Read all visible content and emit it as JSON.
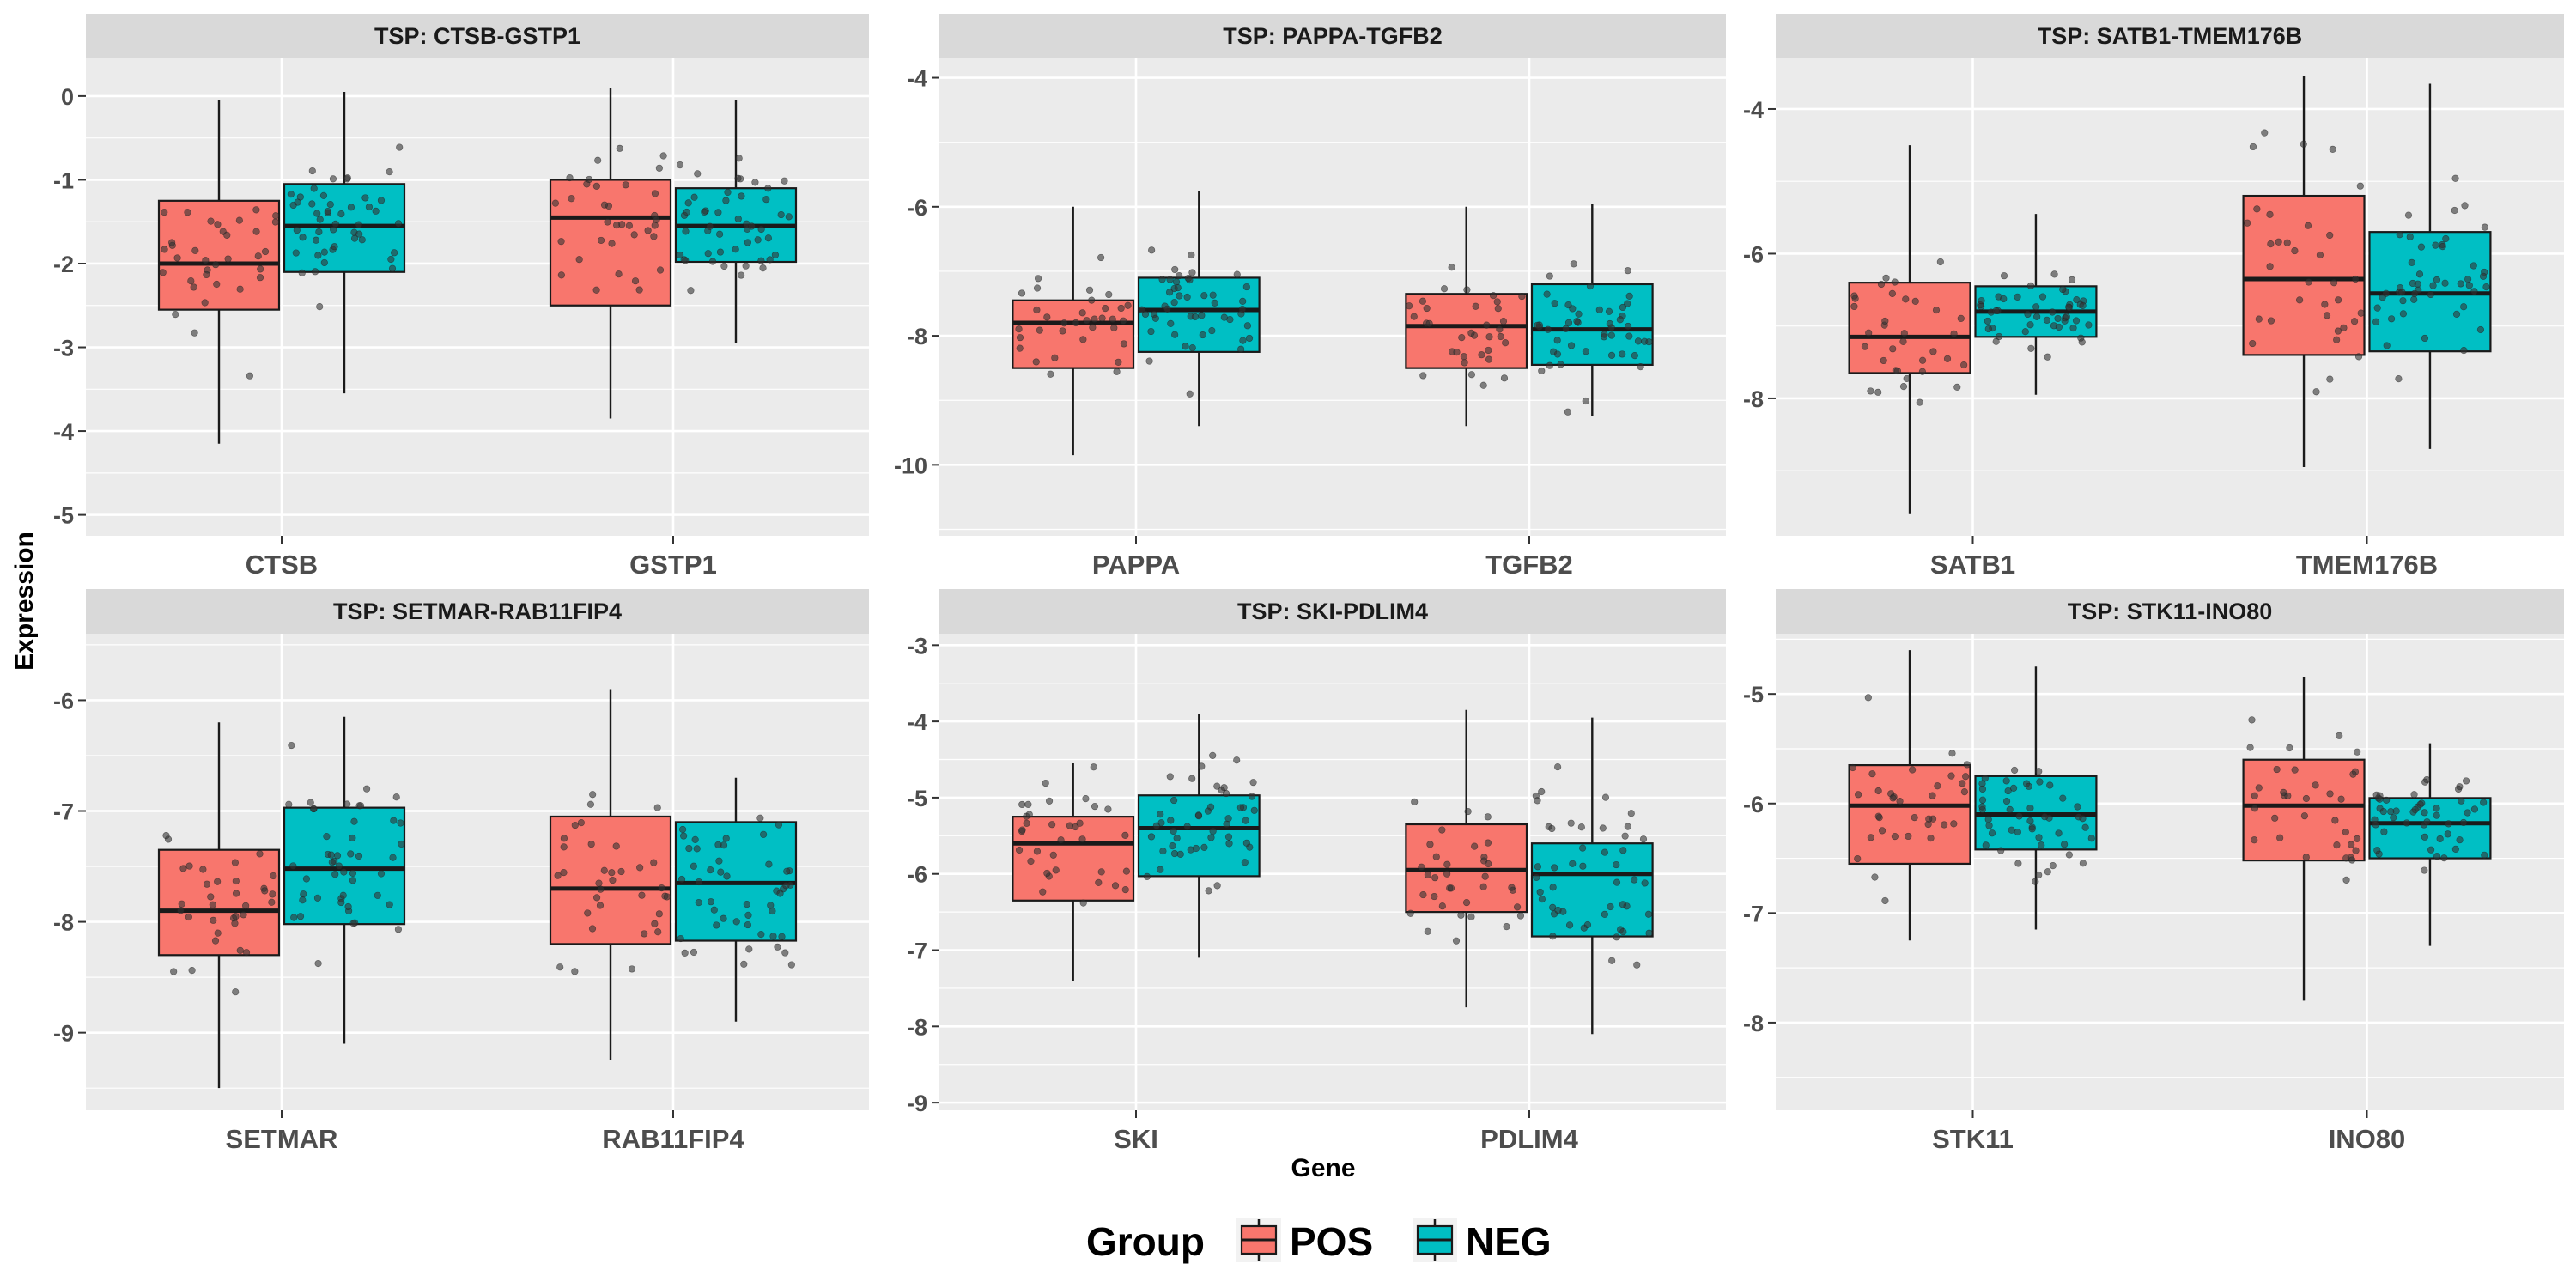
{
  "axes": {
    "x_title": "Gene",
    "y_title": "Expression"
  },
  "legend": {
    "title": "Group",
    "position": "bottom",
    "items": [
      {
        "label": "POS",
        "color": "#F8766D"
      },
      {
        "label": "NEG",
        "color": "#00BFC4"
      }
    ]
  },
  "chart_data": [
    {
      "type": "box",
      "title": "TSP: CTSB-GSTP1",
      "categories": [
        "CTSB",
        "GSTP1"
      ],
      "ylim": [
        -5.25,
        0.45
      ],
      "yticks": [
        0,
        -1,
        -2,
        -3,
        -4,
        -5
      ],
      "grid": true,
      "series": [
        {
          "name": "POS",
          "boxes": [
            {
              "min": -4.15,
              "q1": -2.55,
              "median": -2.0,
              "q3": -1.25,
              "max": -0.05
            },
            {
              "min": -3.85,
              "q1": -2.5,
              "median": -1.45,
              "q3": -1.0,
              "max": 0.1
            }
          ]
        },
        {
          "name": "NEG",
          "boxes": [
            {
              "min": -3.55,
              "q1": -2.1,
              "median": -1.55,
              "q3": -1.05,
              "max": 0.05
            },
            {
              "min": -2.95,
              "q1": -1.98,
              "median": -1.55,
              "q3": -1.1,
              "max": -0.05
            }
          ]
        }
      ]
    },
    {
      "type": "box",
      "title": "TSP: PAPPA-TGFB2",
      "categories": [
        "PAPPA",
        "TGFB2"
      ],
      "ylim": [
        -11.1,
        -3.7
      ],
      "yticks": [
        -4,
        -6,
        -8,
        -10
      ],
      "grid": true,
      "series": [
        {
          "name": "POS",
          "boxes": [
            {
              "min": -9.85,
              "q1": -8.5,
              "median": -7.8,
              "q3": -7.45,
              "max": -6.0
            },
            {
              "min": -9.4,
              "q1": -8.5,
              "median": -7.85,
              "q3": -7.35,
              "max": -6.0
            }
          ]
        },
        {
          "name": "NEG",
          "boxes": [
            {
              "min": -9.4,
              "q1": -8.25,
              "median": -7.6,
              "q3": -7.1,
              "max": -5.75
            },
            {
              "min": -9.25,
              "q1": -8.45,
              "median": -7.9,
              "q3": -7.2,
              "max": -5.95
            }
          ]
        }
      ]
    },
    {
      "type": "box",
      "title": "TSP: SATB1-TMEM176B",
      "categories": [
        "SATB1",
        "TMEM176B"
      ],
      "ylim": [
        -9.9,
        -3.3
      ],
      "yticks": [
        -4,
        -6,
        -8
      ],
      "grid": true,
      "series": [
        {
          "name": "POS",
          "boxes": [
            {
              "min": -9.6,
              "q1": -7.65,
              "median": -7.15,
              "q3": -6.4,
              "max": -4.5
            },
            {
              "min": -8.95,
              "q1": -7.4,
              "median": -6.35,
              "q3": -5.2,
              "max": -3.55
            }
          ]
        },
        {
          "name": "NEG",
          "boxes": [
            {
              "min": -7.95,
              "q1": -7.15,
              "median": -6.8,
              "q3": -6.45,
              "max": -5.45
            },
            {
              "min": -8.7,
              "q1": -7.35,
              "median": -6.55,
              "q3": -5.7,
              "max": -3.65
            }
          ]
        }
      ]
    },
    {
      "type": "box",
      "title": "TSP: SETMAR-RAB11FIP4",
      "categories": [
        "SETMAR",
        "RAB11FIP4"
      ],
      "ylim": [
        -9.7,
        -5.4
      ],
      "yticks": [
        -6,
        -7,
        -8,
        -9
      ],
      "grid": true,
      "series": [
        {
          "name": "POS",
          "boxes": [
            {
              "min": -9.5,
              "q1": -8.3,
              "median": -7.9,
              "q3": -7.35,
              "max": -6.2
            },
            {
              "min": -9.25,
              "q1": -8.2,
              "median": -7.7,
              "q3": -7.05,
              "max": -5.9
            }
          ]
        },
        {
          "name": "NEG",
          "boxes": [
            {
              "min": -9.1,
              "q1": -8.02,
              "median": -7.52,
              "q3": -6.97,
              "max": -6.15
            },
            {
              "min": -8.9,
              "q1": -8.17,
              "median": -7.65,
              "q3": -7.1,
              "max": -6.7
            }
          ]
        }
      ]
    },
    {
      "type": "box",
      "title": "TSP: SKI-PDLIM4",
      "categories": [
        "SKI",
        "PDLIM4"
      ],
      "ylim": [
        -9.1,
        -2.85
      ],
      "yticks": [
        -3,
        -4,
        -5,
        -6,
        -7,
        -8,
        -9
      ],
      "grid": true,
      "series": [
        {
          "name": "POS",
          "boxes": [
            {
              "min": -7.4,
              "q1": -6.35,
              "median": -5.6,
              "q3": -5.25,
              "max": -4.55
            },
            {
              "min": -7.75,
              "q1": -6.5,
              "median": -5.95,
              "q3": -5.35,
              "max": -3.85
            }
          ]
        },
        {
          "name": "NEG",
          "boxes": [
            {
              "min": -7.1,
              "q1": -6.03,
              "median": -5.4,
              "q3": -4.97,
              "max": -3.9
            },
            {
              "min": -8.1,
              "q1": -6.82,
              "median": -6.0,
              "q3": -5.6,
              "max": -3.95
            }
          ]
        }
      ]
    },
    {
      "type": "box",
      "title": "TSP: STK11-INO80",
      "categories": [
        "STK11",
        "INO80"
      ],
      "ylim": [
        -8.8,
        -4.45
      ],
      "yticks": [
        -5,
        -6,
        -7,
        -8
      ],
      "grid": true,
      "series": [
        {
          "name": "POS",
          "boxes": [
            {
              "min": -7.25,
              "q1": -6.55,
              "median": -6.02,
              "q3": -5.65,
              "max": -4.6
            },
            {
              "min": -7.8,
              "q1": -6.52,
              "median": -6.02,
              "q3": -5.6,
              "max": -4.85
            }
          ]
        },
        {
          "name": "NEG",
          "boxes": [
            {
              "min": -7.15,
              "q1": -6.42,
              "median": -6.1,
              "q3": -5.75,
              "max": -4.75
            },
            {
              "min": -7.3,
              "q1": -6.5,
              "median": -6.18,
              "q3": -5.95,
              "max": -5.45
            }
          ]
        }
      ]
    }
  ]
}
